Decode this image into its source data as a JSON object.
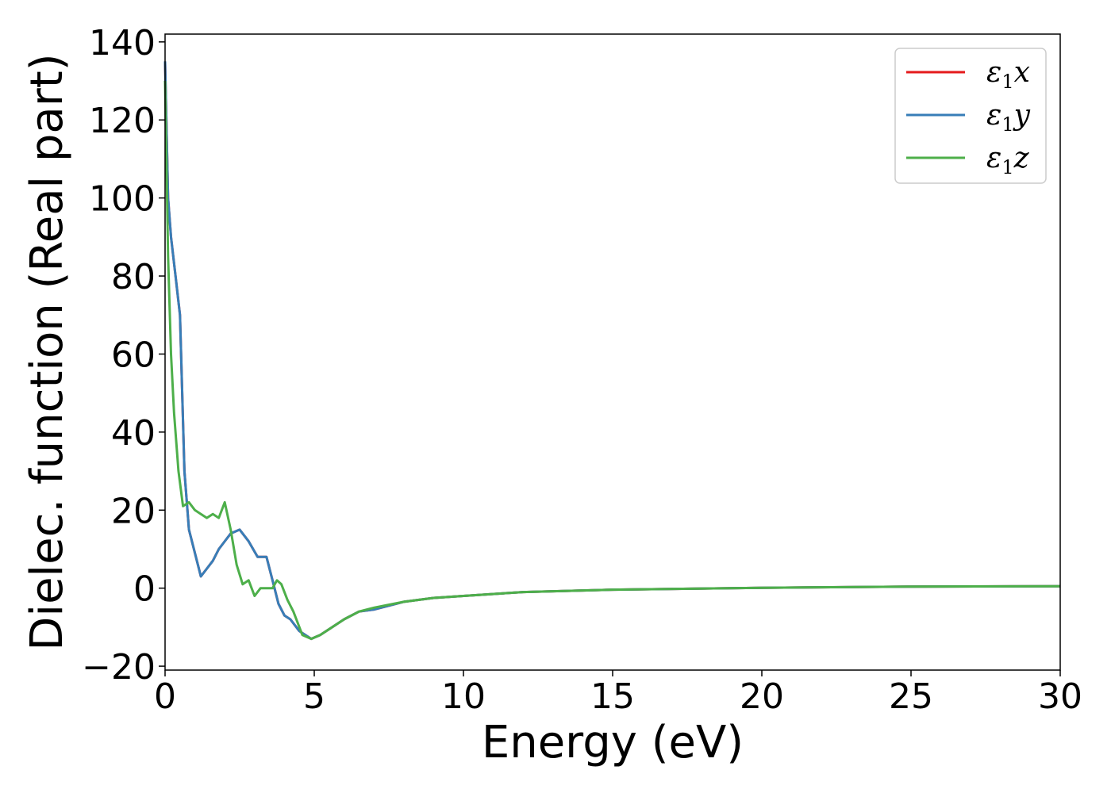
{
  "chart_data": {
    "type": "line",
    "title": "",
    "xlabel": "Energy (eV)",
    "ylabel": "Dielec. function (Real part)",
    "xlim": [
      0,
      30
    ],
    "ylim": [
      -21,
      142
    ],
    "xticks": [
      0,
      5,
      10,
      15,
      20,
      25,
      30
    ],
    "xtick_labels": [
      "0",
      "5",
      "10",
      "15",
      "20",
      "25",
      "30"
    ],
    "yticks": [
      -20,
      0,
      20,
      40,
      60,
      80,
      100,
      120,
      140
    ],
    "ytick_labels": [
      "−20",
      "0",
      "20",
      "40",
      "60",
      "80",
      "100",
      "120",
      "140"
    ],
    "grid": false,
    "legend_position": "top-right",
    "series": [
      {
        "name": "ε",
        "sub": "1",
        "axis": "x",
        "color": "#e41a1c",
        "x": [
          0.0,
          0.1,
          0.2,
          0.35,
          0.5,
          0.65,
          0.8,
          1.0,
          1.2,
          1.4,
          1.6,
          1.8,
          2.0,
          2.2,
          2.5,
          2.8,
          3.1,
          3.4,
          3.6,
          3.8,
          4.0,
          4.2,
          4.5,
          4.9,
          5.2,
          5.6,
          6.0,
          6.5,
          7.0,
          8.0,
          9.0,
          10.0,
          12.0,
          15.0,
          20.0,
          25.0,
          30.0
        ],
        "y": [
          135,
          100,
          90,
          80,
          70,
          30,
          15,
          9,
          3,
          5,
          7,
          10,
          12,
          14,
          15,
          12,
          8,
          8,
          2,
          -4,
          -7,
          -8,
          -11,
          -13,
          -12,
          -10,
          -8,
          -6,
          -5.5,
          -3.5,
          -2.5,
          -2,
          -1,
          -0.4,
          0.1,
          0.4,
          0.5
        ]
      },
      {
        "name": "ε",
        "sub": "1",
        "axis": "y",
        "color": "#377eb8",
        "x": [
          0.0,
          0.1,
          0.2,
          0.35,
          0.5,
          0.65,
          0.8,
          1.0,
          1.2,
          1.4,
          1.6,
          1.8,
          2.0,
          2.2,
          2.5,
          2.8,
          3.1,
          3.4,
          3.6,
          3.8,
          4.0,
          4.2,
          4.5,
          4.9,
          5.2,
          5.6,
          6.0,
          6.5,
          7.0,
          8.0,
          9.0,
          10.0,
          12.0,
          15.0,
          20.0,
          25.0,
          30.0
        ],
        "y": [
          135,
          100,
          90,
          80,
          70,
          30,
          15,
          9,
          3,
          5,
          7,
          10,
          12,
          14,
          15,
          12,
          8,
          8,
          2,
          -4,
          -7,
          -8,
          -11,
          -13,
          -12,
          -10,
          -8,
          -6,
          -5.5,
          -3.5,
          -2.5,
          -2,
          -1,
          -0.4,
          0.1,
          0.4,
          0.5
        ]
      },
      {
        "name": "ε",
        "sub": "1",
        "axis": "z",
        "color": "#4daf4a",
        "x": [
          0.0,
          0.1,
          0.2,
          0.3,
          0.45,
          0.6,
          0.8,
          1.0,
          1.2,
          1.4,
          1.6,
          1.8,
          2.0,
          2.2,
          2.4,
          2.6,
          2.8,
          3.0,
          3.2,
          3.4,
          3.6,
          3.75,
          3.9,
          4.1,
          4.3,
          4.6,
          4.9,
          5.2,
          5.6,
          6.0,
          6.5,
          7.0,
          8.0,
          9.0,
          10.0,
          12.0,
          15.0,
          20.0,
          25.0,
          30.0
        ],
        "y": [
          130,
          85,
          60,
          45,
          30,
          21,
          22,
          20,
          19,
          18,
          19,
          18,
          22,
          15,
          6,
          1,
          2,
          -2,
          0,
          0,
          0,
          2,
          1,
          -3,
          -6,
          -12,
          -13,
          -12,
          -10,
          -8,
          -6,
          -5,
          -3.5,
          -2.5,
          -2,
          -1,
          -0.4,
          0.1,
          0.4,
          0.5
        ]
      }
    ]
  }
}
